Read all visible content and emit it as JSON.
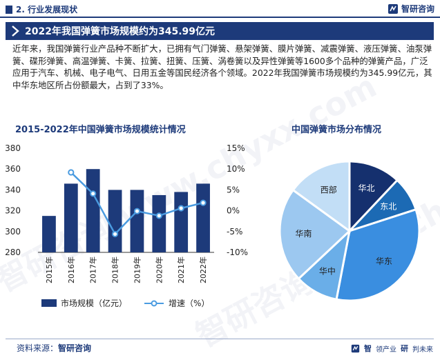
{
  "header": {
    "section": "2. 行业发展现状",
    "brand": "智研咨询"
  },
  "banner": {
    "title": "2022年我国弹簧市场规模约为345.99亿元"
  },
  "intro": "近年来，我国弹簧行业产品种不断扩大，已拥有气门弹簧、悬架弹簧、膜片弹簧、减震弹簧、液压弹簧、油泵弹簧、碟形弹簧、高温弹簧、卡簧、拉簧、扭簧、压簧、涡卷簧以及异性弹簧等1600多个品种的弹簧产品，广泛应用于汽车、机械、电子电气、日用五金等国民经济各个领域。2022年我国弹簧市场规模约为345.99亿元，其中华东地区所占份额最大，占到了33%。",
  "watermark": "智研咨询 www.chyxx.com",
  "colors": {
    "primary": "#1d3a7a",
    "line": "#4a9be0",
    "accent": "#ffffff"
  },
  "chart_data": [
    {
      "type": "bar",
      "title": "2015-2022年中国弹簧市场规模统计情况",
      "categories": [
        "2015年",
        "2016年",
        "2017年",
        "2018年",
        "2019年",
        "2020年",
        "2021年",
        "2022年"
      ],
      "series": [
        {
          "name": "市场规模（亿元）",
          "type": "bar",
          "axis": "left",
          "values": [
            315,
            346,
            360,
            340,
            340,
            335,
            338,
            346
          ]
        },
        {
          "name": "增速（%）",
          "type": "line",
          "axis": "right",
          "values": [
            null,
            9.2,
            4.1,
            -5.6,
            -0.1,
            -1.2,
            0.6,
            1.9
          ]
        }
      ],
      "ylim_left": [
        280,
        380
      ],
      "yticks_left": [
        280,
        300,
        320,
        340,
        360,
        380
      ],
      "ylim_right": [
        -10,
        15
      ],
      "yticks_right": [
        "-10%",
        "-5%",
        "0%",
        "5%",
        "10%",
        "15%"
      ],
      "yticks_right_values": [
        -10,
        -5,
        0,
        5,
        10,
        15
      ],
      "legend": "bottom"
    },
    {
      "type": "pie",
      "title": "中国弹簧市场分布情况",
      "labels": [
        "华北",
        "东北",
        "华东",
        "华中",
        "华南",
        "西部"
      ],
      "values": [
        12,
        8,
        33,
        10,
        22,
        15
      ],
      "colors": [
        "#15306e",
        "#1c6ab4",
        "#3a8ee0",
        "#6aaee8",
        "#9cc8f0",
        "#c2def6"
      ],
      "label_colors": [
        "#ffffff",
        "#ffffff",
        "#222222",
        "#222222",
        "#222222",
        "#222222"
      ]
    }
  ],
  "footer": {
    "source_label": "资料来源：",
    "source_value": "智研咨询",
    "brand_a": "智",
    "brand_b": "领产业",
    "brand_c": "研",
    "brand_d": "判未来"
  }
}
